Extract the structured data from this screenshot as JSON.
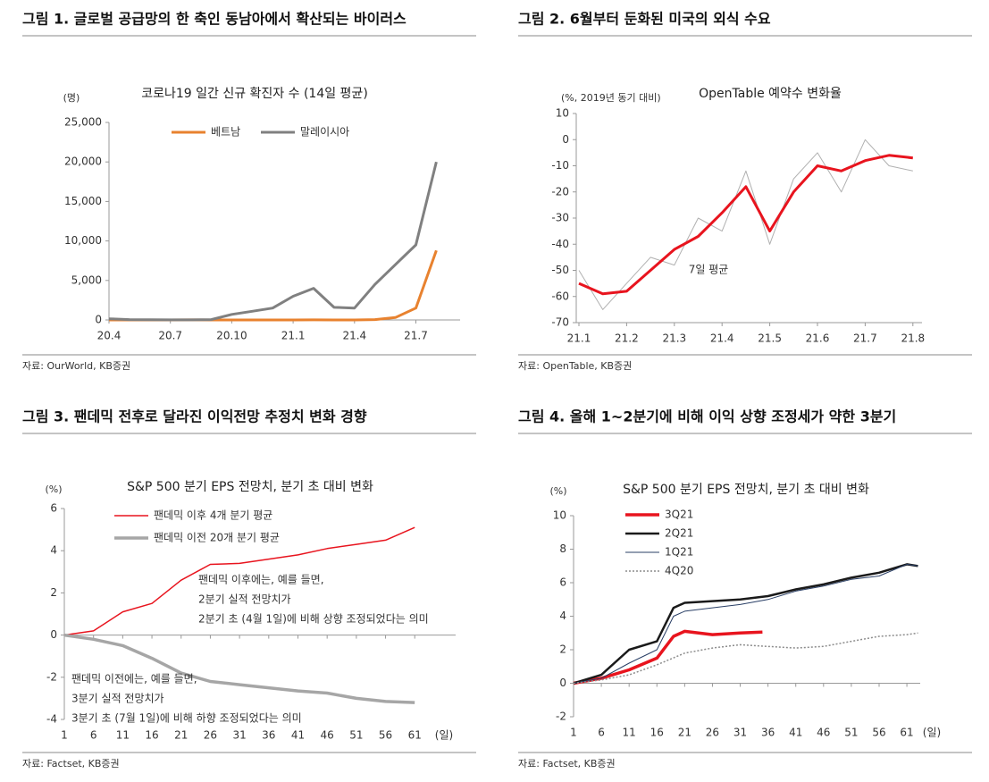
{
  "chart_data": [
    {
      "type": "line",
      "title": "그림 1. 글로벌 공급망의 한 축인 동남아에서 확산되는 바이러스",
      "subtitle": "코로나19 일간 신규 확진자 수 (14일 평균)",
      "ylabel": "(명)",
      "source": "자료: OurWorld, KB증권",
      "categories": [
        "20.4",
        null,
        null,
        "20.7",
        null,
        null,
        "20.10",
        null,
        null,
        "21.1",
        null,
        null,
        "21.4",
        null,
        null,
        "21.7",
        null
      ],
      "series": [
        {
          "name": "베트남",
          "color": "#e8822f",
          "linewidth": 3,
          "values": [
            0,
            0,
            0,
            0,
            10,
            5,
            0,
            0,
            0,
            0,
            10,
            5,
            0,
            50,
            300,
            1500,
            8800
          ]
        },
        {
          "name": "말레이시아",
          "color": "#808080",
          "linewidth": 3,
          "values": [
            150,
            50,
            20,
            10,
            10,
            50,
            700,
            1100,
            1500,
            3000,
            4000,
            1600,
            1500,
            4500,
            7000,
            9500,
            20000
          ]
        }
      ],
      "ylim": [
        0,
        25000
      ],
      "yticks": [
        0,
        {
          "value": 5000,
          "label": "5,000"
        },
        {
          "value": 10000,
          "label": "10,000"
        },
        {
          "value": 15000,
          "label": "15,000"
        },
        {
          "value": 20000,
          "label": "20,000"
        },
        {
          "value": 25000,
          "label": "25,000"
        }
      ]
    },
    {
      "type": "line",
      "title": "그림 2. 6월부터 둔화된 미국의 외식 수요",
      "subtitle": "OpenTable 예약수 변화율",
      "ylabel": "(%, 2019년 동기 대비)",
      "source": "자료: OpenTable, KB증권",
      "categories": [
        "21.1",
        null,
        "21.2",
        null,
        "21.3",
        null,
        "21.4",
        null,
        "21.5",
        null,
        "21.6",
        null,
        "21.7",
        null,
        "21.8"
      ],
      "series": [
        {
          "color": "#b0b0b0",
          "linewidth": 1,
          "values": [
            -50,
            -65,
            -55,
            -45,
            -48,
            -30,
            -35,
            -12,
            -40,
            -15,
            -5,
            -20,
            0,
            -10,
            -12
          ]
        },
        {
          "name": "7일 평균",
          "color": "#e8141e",
          "linewidth": 3,
          "values": [
            -55,
            -59,
            -58,
            -50,
            -42,
            -37,
            -28,
            -18,
            -35,
            -20,
            -10,
            -12,
            -8,
            -6,
            -7
          ]
        }
      ],
      "ylim": [
        -70,
        10
      ],
      "yticks": [
        -70,
        -60,
        -50,
        -40,
        -30,
        -20,
        -10,
        0,
        10
      ]
    },
    {
      "type": "line",
      "title": "그림 3. 팬데믹 전후로 달라진 이익전망 추정치 변화 경향",
      "subtitle": "S&P 500 분기 EPS 전망치, 분기 초 대비 변화",
      "ylabel": "(%)",
      "xlabel": "(일)",
      "source": "자료: Factset, KB증권",
      "x": [
        1,
        6,
        11,
        16,
        21,
        26,
        31,
        36,
        41,
        46,
        51,
        56,
        61
      ],
      "series": [
        {
          "name": "팬데믹 이후 4개 분기 평균",
          "color": "#e8141e",
          "linewidth": 1.5,
          "values": [
            0,
            0.2,
            1.1,
            1.5,
            2.6,
            3.35,
            3.4,
            3.6,
            3.8,
            4.1,
            4.3,
            4.5,
            5.1
          ]
        },
        {
          "name": "팬데믹 이전 20개 분기 평균",
          "color": "#a6a6a6",
          "linewidth": 3.5,
          "values": [
            0,
            -0.2,
            -0.5,
            -1.1,
            -1.8,
            -2.2,
            -2.35,
            -2.5,
            -2.65,
            -2.75,
            -3.0,
            -3.15,
            -3.2
          ]
        }
      ],
      "annotations": [
        {
          "color": "#e8141e",
          "lines": [
            "팬데믹 이후에는, 예를 들면,",
            "2분기 실적 전망치가",
            "2분기 초 (4월 1일)에 비해 상향 조정되었다는 의미"
          ]
        },
        {
          "color": "#8c8c8c",
          "lines": [
            "팬데믹 이전에는, 예를 들면,",
            "3분기 실적 전망치가",
            "3분기 초 (7월 1일)에 비해 하향 조정되었다는 의미"
          ]
        }
      ],
      "xlim": [
        1,
        68
      ],
      "xticks": [
        1,
        6,
        11,
        16,
        21,
        26,
        31,
        36,
        41,
        46,
        51,
        56,
        61
      ],
      "ylim": [
        -4,
        6
      ],
      "yticks": [
        -4,
        -2,
        0,
        2,
        4,
        6
      ]
    },
    {
      "type": "line",
      "title": "그림 4. 올해 1~2분기에 비해 이익 상향 조정세가 약한 3분기",
      "subtitle": "S&P 500 분기 EPS 전망치, 분기 초 대비 변화",
      "ylabel": "(%)",
      "xlabel": "(일)",
      "source": "자료: Factset, KB증권",
      "series": [
        {
          "name": "3Q21",
          "color": "#e8141e",
          "linewidth": 3.5,
          "x": [
            1,
            6,
            11,
            16,
            19,
            21,
            26,
            31,
            35
          ],
          "values": [
            0,
            0.3,
            0.8,
            1.5,
            2.8,
            3.1,
            2.9,
            3.0,
            3.05
          ]
        },
        {
          "name": "2Q21",
          "color": "#1a1a1a",
          "linewidth": 2.5,
          "x": [
            1,
            6,
            11,
            16,
            19,
            21,
            26,
            31,
            36,
            41,
            46,
            51,
            56,
            61,
            63
          ],
          "values": [
            0,
            0.5,
            2,
            2.5,
            4.5,
            4.8,
            4.9,
            5,
            5.2,
            5.6,
            5.9,
            6.3,
            6.6,
            7.1,
            7.0
          ]
        },
        {
          "name": "1Q21",
          "color": "#2a3f66",
          "linewidth": 1,
          "x": [
            1,
            6,
            11,
            16,
            19,
            21,
            26,
            31,
            36,
            41,
            46,
            51,
            56,
            61,
            63
          ],
          "values": [
            0,
            0.3,
            1.2,
            2,
            4,
            4.3,
            4.5,
            4.7,
            5,
            5.5,
            5.8,
            6.2,
            6.4,
            7.1,
            7.0
          ]
        },
        {
          "name": "4Q20",
          "color": "#8c8c8c",
          "linewidth": 1.5,
          "line_style": "dotted",
          "x": [
            1,
            6,
            11,
            16,
            21,
            26,
            31,
            36,
            41,
            46,
            51,
            56,
            61,
            63
          ],
          "values": [
            0,
            0.2,
            0.5,
            1.1,
            1.8,
            2.1,
            2.3,
            2.2,
            2.1,
            2.2,
            2.5,
            2.8,
            2.9,
            3.0
          ]
        }
      ],
      "xlim": [
        1,
        63.4
      ],
      "xticks": [
        1,
        6,
        11,
        16,
        21,
        26,
        31,
        36,
        41,
        46,
        51,
        56,
        61
      ],
      "ylim": [
        -2,
        10
      ],
      "yticks": [
        -2,
        0,
        2,
        4,
        6,
        8,
        10
      ]
    }
  ]
}
